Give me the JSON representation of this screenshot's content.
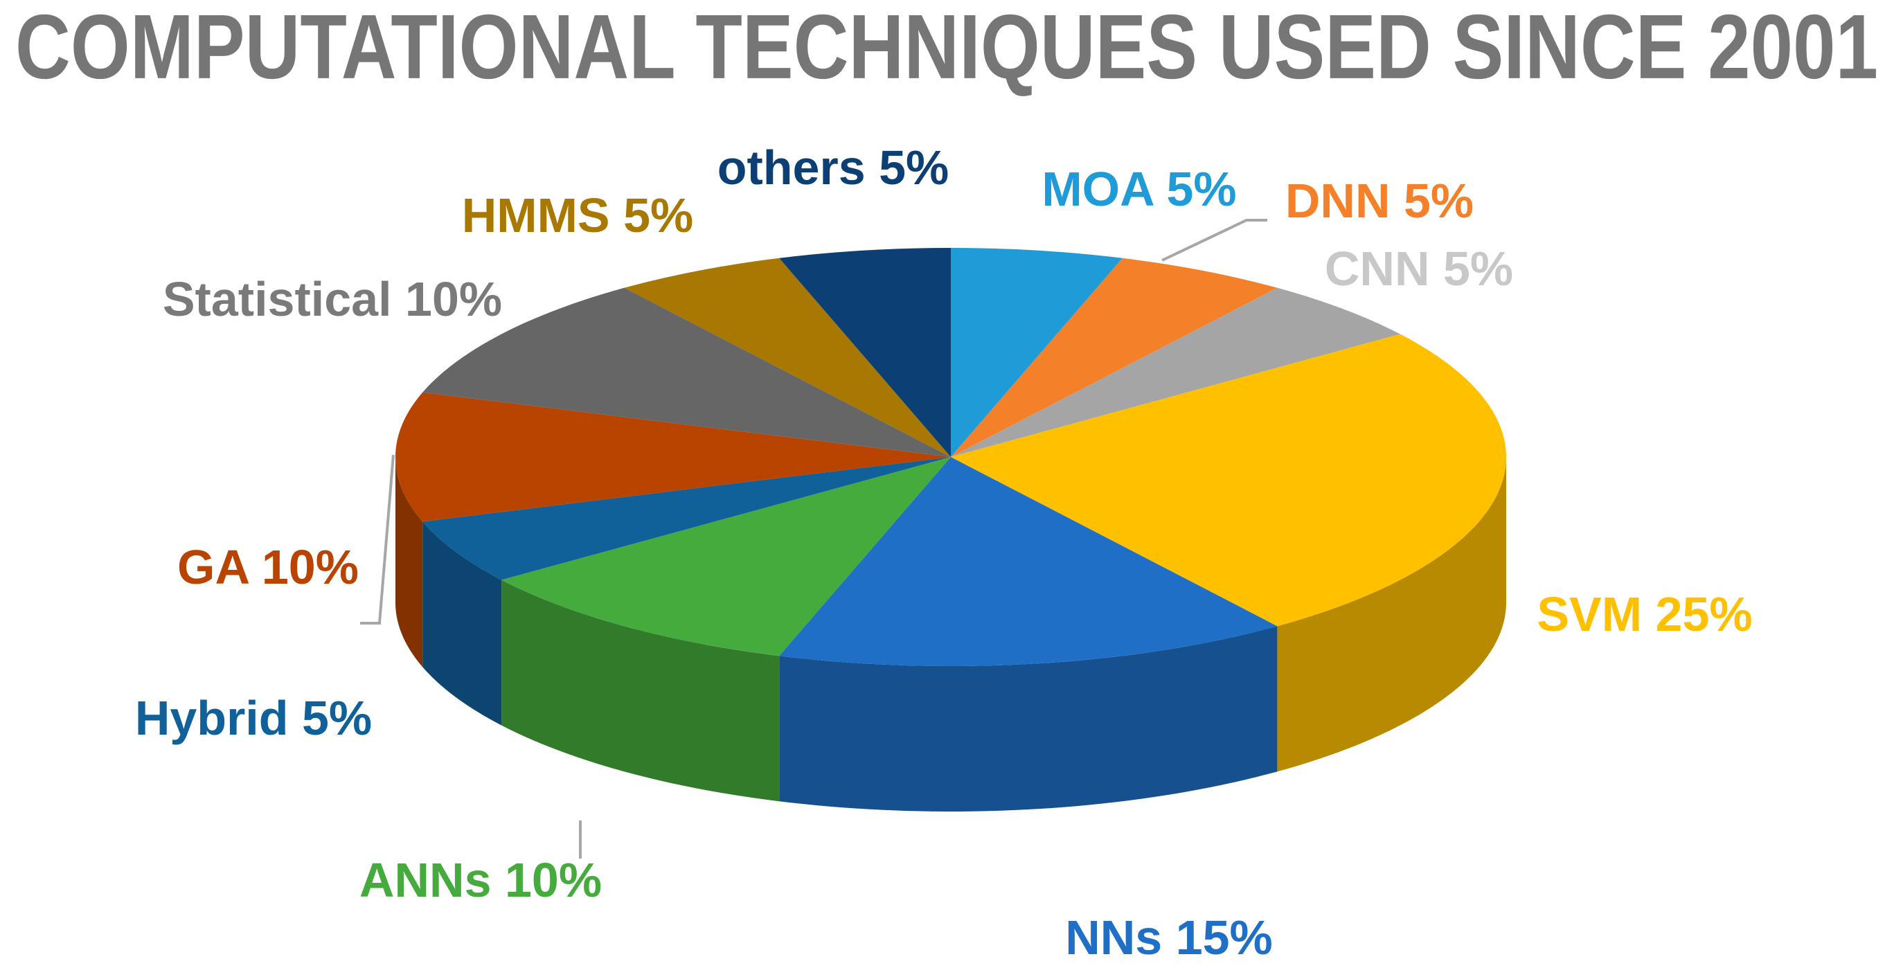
{
  "chart_data": {
    "type": "pie3d",
    "title": "COMPUTATIONAL TECHNIQUES USED SINCE 2001",
    "categories": [
      "MOA",
      "DNN",
      "CNN",
      "SVM",
      "NNs",
      "ANNs",
      "Hybrid",
      "GA",
      "Statistical",
      "HMMS",
      "others"
    ],
    "values": [
      5,
      5,
      5,
      25,
      15,
      10,
      5,
      10,
      10,
      5,
      5
    ],
    "value_labels": [
      "5%",
      "5%",
      "5%",
      "25%",
      "15%",
      "10%",
      "5%",
      "10%",
      "10%",
      "5%",
      "5%"
    ],
    "colors": [
      "#1f9bd7",
      "#f5802a",
      "#a5a5a5",
      "#ffc000",
      "#1f6fc6",
      "#44ab3c",
      "#10609a",
      "#b84400",
      "#666666",
      "#a87800",
      "#0c3f74"
    ]
  }
}
